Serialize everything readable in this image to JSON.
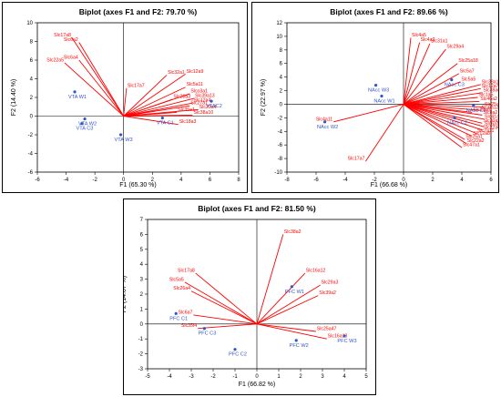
{
  "chart_data": [
    {
      "type": "scatter",
      "subtype": "biplot",
      "title": "Biplot (axes F1 and F2: 79.70 %)",
      "xlabel": "F1 (65.30 %)",
      "ylabel": "F2 (14.40 %)",
      "xlim": [
        -6,
        8
      ],
      "ylim": [
        -6,
        10
      ],
      "xticks": [
        -6,
        -4,
        -2,
        0,
        2,
        4,
        6,
        8
      ],
      "yticks": [
        -6,
        -4,
        -2,
        0,
        2,
        4,
        6,
        8,
        10
      ],
      "grid": false,
      "colors": {
        "variables": "#ff0000",
        "observations": "#3355cc"
      },
      "variables": [
        {
          "label": "Slc17a8",
          "x": -3.6,
          "y": 8.4
        },
        {
          "label": "Slc6a2",
          "x": -3.1,
          "y": 7.9
        },
        {
          "label": "Slc6a4",
          "x": -3.1,
          "y": 6.0
        },
        {
          "label": "Slc22a5",
          "x": -4.1,
          "y": 5.7
        },
        {
          "label": "Slc17a7",
          "x": 0.2,
          "y": 3.0
        },
        {
          "label": "Slc32a1",
          "x": 3.0,
          "y": 4.4
        },
        {
          "label": "Slc12a9",
          "x": 4.3,
          "y": 4.5
        },
        {
          "label": "Slc5a11",
          "x": 4.3,
          "y": 3.1
        },
        {
          "label": "Slco3a1",
          "x": 4.6,
          "y": 2.4
        },
        {
          "label": "Slc28a3",
          "x": 3.4,
          "y": 1.8
        },
        {
          "label": "Slc39a13",
          "x": 4.9,
          "y": 1.9
        },
        {
          "label": "Slc12a4",
          "x": 4.8,
          "y": 1.4
        },
        {
          "label": "Slc27a1",
          "x": 4.6,
          "y": 1.1
        },
        {
          "label": "Slc29a4",
          "x": 5.2,
          "y": 0.7
        },
        {
          "label": "Slc35e1",
          "x": 3.7,
          "y": 0.4
        },
        {
          "label": "Slc38a10",
          "x": 4.8,
          "y": 0.1
        },
        {
          "label": "Slc18a3",
          "x": 3.8,
          "y": -0.9
        }
      ],
      "observations": [
        {
          "label": "VTA W1",
          "x": -3.4,
          "y": 2.6
        },
        {
          "label": "VTA W2",
          "x": -2.7,
          "y": -0.3
        },
        {
          "label": "VTA C3",
          "x": -2.9,
          "y": -0.8
        },
        {
          "label": "VTA W3",
          "x": -0.2,
          "y": -2.0
        },
        {
          "label": "VTA C1",
          "x": 2.7,
          "y": -0.2
        },
        {
          "label": "VTAC2",
          "x": 6.1,
          "y": 1.6
        }
      ]
    },
    {
      "type": "scatter",
      "subtype": "biplot",
      "title": "Biplot (axes F1 and F2: 89.66 %)",
      "xlabel": "F1 (66.68 %)",
      "ylabel": "F2 (22.97 %)",
      "xlim": [
        -8,
        6
      ],
      "ylim": [
        -10,
        12
      ],
      "xticks": [
        -8,
        -6,
        -4,
        -2,
        0,
        2,
        4,
        6
      ],
      "yticks": [
        -10,
        -8,
        -6,
        -4,
        -2,
        0,
        2,
        4,
        6,
        8,
        10,
        12
      ],
      "grid": false,
      "colors": {
        "variables": "#ff0000",
        "observations": "#3355cc"
      },
      "variables": [
        {
          "label": "Slc4a5",
          "x": 0.5,
          "y": 9.8
        },
        {
          "label": "Slc4a2",
          "x": 1.1,
          "y": 9.1
        },
        {
          "label": "Slc31a1",
          "x": 1.8,
          "y": 8.9
        },
        {
          "label": "Slc29a4",
          "x": 2.9,
          "y": 8.1
        },
        {
          "label": "Slc25a18",
          "x": 3.7,
          "y": 6.0
        },
        {
          "label": "Slc5a7",
          "x": 3.8,
          "y": 4.5
        },
        {
          "label": "Slc5a5",
          "x": 3.9,
          "y": 3.3
        },
        {
          "label": "Slc38a11",
          "x": 5.3,
          "y": 2.9
        },
        {
          "label": "Slc12a7",
          "x": 5.3,
          "y": 2.3
        },
        {
          "label": "Slc38a6",
          "x": 5.4,
          "y": 1.7
        },
        {
          "label": "Slc1a5",
          "x": 5.1,
          "y": 1.0
        },
        {
          "label": "Slc46a2",
          "x": 5.2,
          "y": 0.4
        },
        {
          "label": "Slc4a11",
          "x": -4.8,
          "y": -2.6
        },
        {
          "label": "Slc17a7",
          "x": -2.6,
          "y": -8.4
        },
        {
          "label": "Slc25a8",
          "x": 5.5,
          "y": -0.4
        },
        {
          "label": "Slc6a12",
          "x": 5.3,
          "y": -0.9
        },
        {
          "label": "Slc39a8",
          "x": 4.7,
          "y": -1.2
        },
        {
          "label": "Slc8a2",
          "x": 5.4,
          "y": -1.6
        },
        {
          "label": "Slc41a3",
          "x": 5.5,
          "y": -2.2
        },
        {
          "label": "Slc30a5",
          "x": 5.4,
          "y": -2.8
        },
        {
          "label": "Slc6a13",
          "x": 5.5,
          "y": -3.3
        },
        {
          "label": "Slc22a6",
          "x": 5.4,
          "y": -3.8
        },
        {
          "label": "Slc7a11",
          "x": 5.0,
          "y": -4.3
        },
        {
          "label": "Slc12a8",
          "x": 4.7,
          "y": -4.7
        },
        {
          "label": "Slc25a1",
          "x": 4.2,
          "y": -5.2
        },
        {
          "label": "Slc22a2",
          "x": 4.3,
          "y": -5.8
        },
        {
          "label": "Slc47a1",
          "x": 4.0,
          "y": -6.4
        }
      ],
      "observations": [
        {
          "label": "NAcc W3",
          "x": -1.9,
          "y": 2.8
        },
        {
          "label": "NAcc W1",
          "x": -1.5,
          "y": 1.2
        },
        {
          "label": "NAcc W2",
          "x": -5.4,
          "y": -2.6
        },
        {
          "label": "NAcc C3",
          "x": 3.3,
          "y": 3.6
        },
        {
          "label": "NAcc C1",
          "x": 4.8,
          "y": -0.2
        },
        {
          "label": "NAcc C2",
          "x": 3.5,
          "y": -2.0
        }
      ]
    },
    {
      "type": "scatter",
      "subtype": "biplot",
      "title": "Biplot (axes F1 and F2: 81.50 %)",
      "xlabel": "F1 (66.82 %)",
      "ylabel": "F2 (14.67 %)",
      "xlim": [
        -5,
        5
      ],
      "ylim": [
        -3,
        7
      ],
      "xticks": [
        -5,
        -4,
        -3,
        -2,
        -1,
        0,
        1,
        2,
        3,
        4,
        5
      ],
      "yticks": [
        -3,
        -2,
        -1,
        0,
        1,
        2,
        3,
        4,
        5,
        6,
        7
      ],
      "grid": false,
      "colors": {
        "variables": "#ff0000",
        "observations": "#3355cc"
      },
      "variables": [
        {
          "label": "Slc38a2",
          "x": 1.2,
          "y": 6.0
        },
        {
          "label": "Slc16a12",
          "x": 2.2,
          "y": 3.4
        },
        {
          "label": "Slc29a3",
          "x": 2.9,
          "y": 2.6
        },
        {
          "label": "Slc39a2",
          "x": 2.8,
          "y": 1.9
        },
        {
          "label": "Slc17a8",
          "x": -2.8,
          "y": 3.4
        },
        {
          "label": "Slc5a5",
          "x": -3.3,
          "y": 2.8
        },
        {
          "label": "Slc26a4",
          "x": -3.0,
          "y": 2.2
        },
        {
          "label": "Slc6a7",
          "x": -2.9,
          "y": 0.6
        },
        {
          "label": "Slc35f4",
          "x": -2.7,
          "y": -0.3
        },
        {
          "label": "Slc25a47",
          "x": 2.7,
          "y": -0.5
        },
        {
          "label": "Slc16a13",
          "x": 3.2,
          "y": -1.0
        }
      ],
      "observations": [
        {
          "label": "PFC C1",
          "x": -3.7,
          "y": 0.7
        },
        {
          "label": "PFC C3",
          "x": -2.4,
          "y": -0.3
        },
        {
          "label": "PFC C2",
          "x": -1.0,
          "y": -1.7
        },
        {
          "label": "PFC W1",
          "x": 1.6,
          "y": 2.5
        },
        {
          "label": "PFC W2",
          "x": 1.8,
          "y": -1.1
        },
        {
          "label": "PFC W3",
          "x": 4.0,
          "y": -0.8
        }
      ]
    }
  ]
}
